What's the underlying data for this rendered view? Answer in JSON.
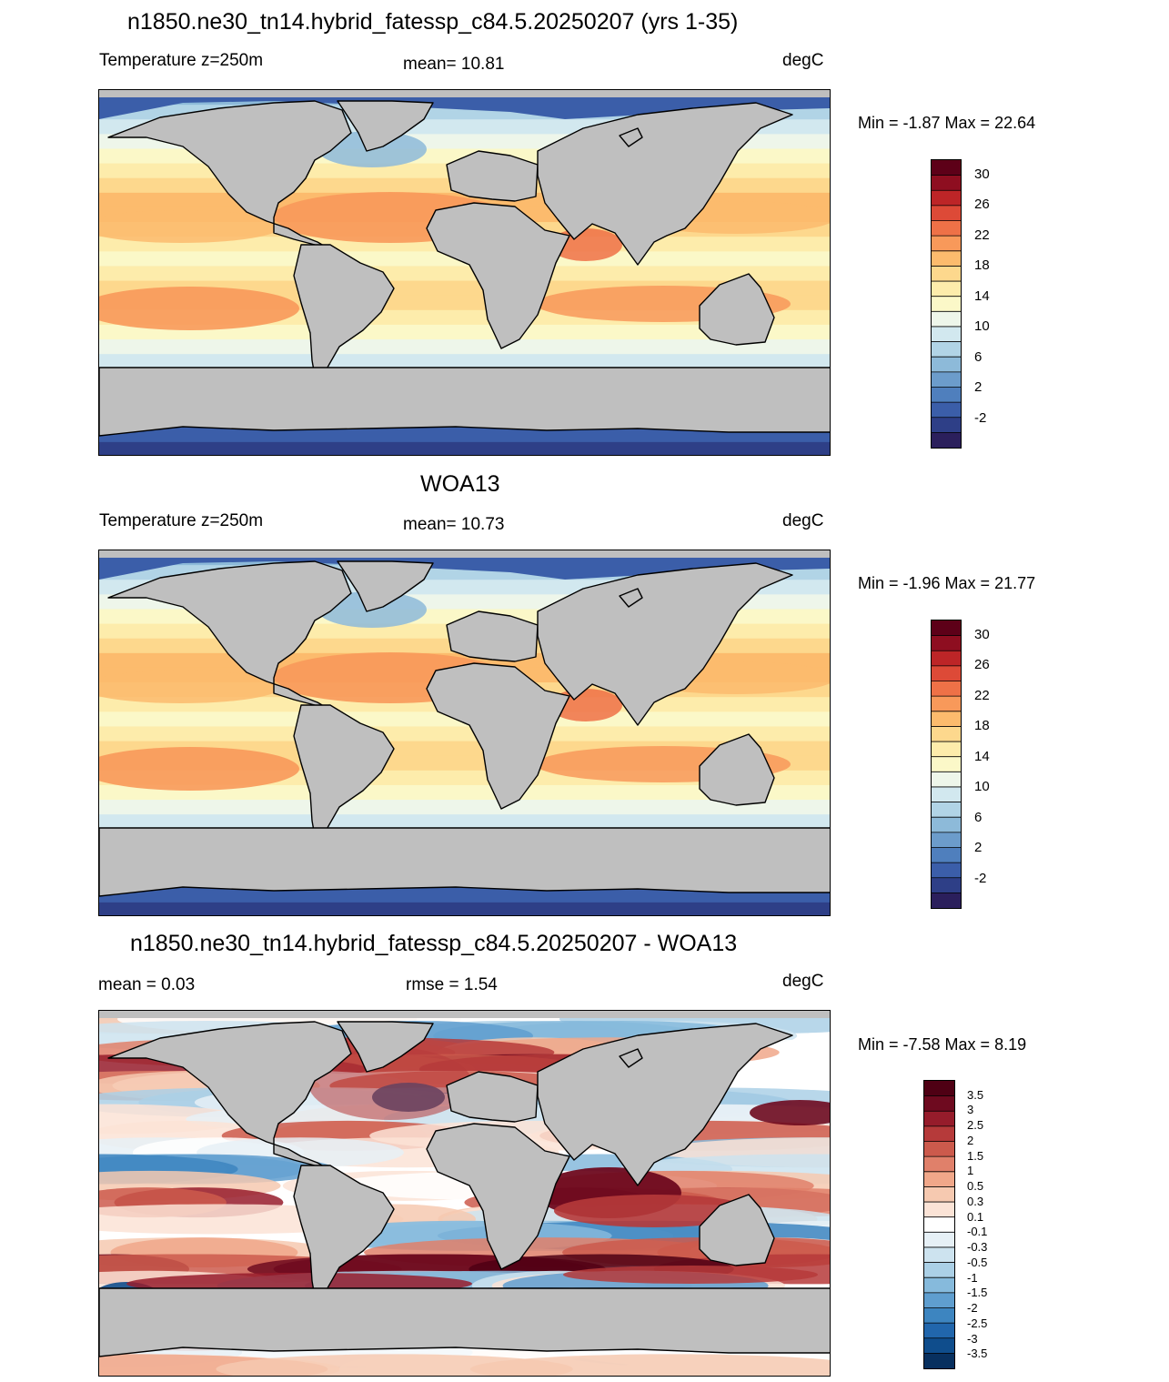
{
  "panels": [
    {
      "title": "n1850.ne30_tn14.hybrid_fatessp_c84.5.20250207 (yrs 1-35)",
      "left_label": "Temperature z=250m",
      "center_label": "mean=  10.81",
      "units": "degC",
      "minmax": "Min =  -1.87 Max =  22.64",
      "colorbar_labels": [
        "30",
        "26",
        "22",
        "18",
        "14",
        "10",
        "6",
        "2",
        "-2"
      ]
    },
    {
      "title": "WOA13",
      "left_label": "Temperature z=250m",
      "center_label": "mean=  10.73",
      "units": "degC",
      "minmax": "Min =  -1.96 Max =  21.77",
      "colorbar_labels": [
        "30",
        "26",
        "22",
        "18",
        "14",
        "10",
        "6",
        "2",
        "-2"
      ]
    },
    {
      "title": "n1850.ne30_tn14.hybrid_fatessp_c84.5.20250207 - WOA13",
      "left_label": "mean =   0.03",
      "center_label": "rmse =   1.54",
      "units": "degC",
      "minmax": "Min =  -7.58 Max =   8.19",
      "colorbar_labels": [
        "3.5",
        "3",
        "2.5",
        "2",
        "1.5",
        "1",
        "0.5",
        "0.3",
        "0.1",
        "-0.1",
        "-0.3",
        "-0.5",
        "-1",
        "-1.5",
        "-2",
        "-2.5",
        "-3",
        "-3.5"
      ]
    }
  ],
  "colors": {
    "land": "#bfbfbf",
    "temp_scale": [
      "#2b1f5c",
      "#2e3f87",
      "#3b5ea9",
      "#4f7fbd",
      "#6c9ccb",
      "#8dbad9",
      "#b1d4e6",
      "#d2e8ef",
      "#eef6ea",
      "#fbf8c8",
      "#fdecab",
      "#fdd88d",
      "#fcbb6d",
      "#f8995a",
      "#ee7147",
      "#dd4a37",
      "#bd2527",
      "#8e0e20",
      "#5d0018"
    ],
    "diff_scale": [
      "#08305f",
      "#0f4d8c",
      "#2166ac",
      "#3d85c0",
      "#5f9ecf",
      "#86badc",
      "#abd0e6",
      "#cde3ef",
      "#e6f0f6",
      "#ffffff",
      "#fbe3d6",
      "#f6c9b0",
      "#f0a789",
      "#e0806a",
      "#cc5a4c",
      "#b63a3a",
      "#961c2b",
      "#6e0a1f",
      "#4f0014"
    ]
  }
}
